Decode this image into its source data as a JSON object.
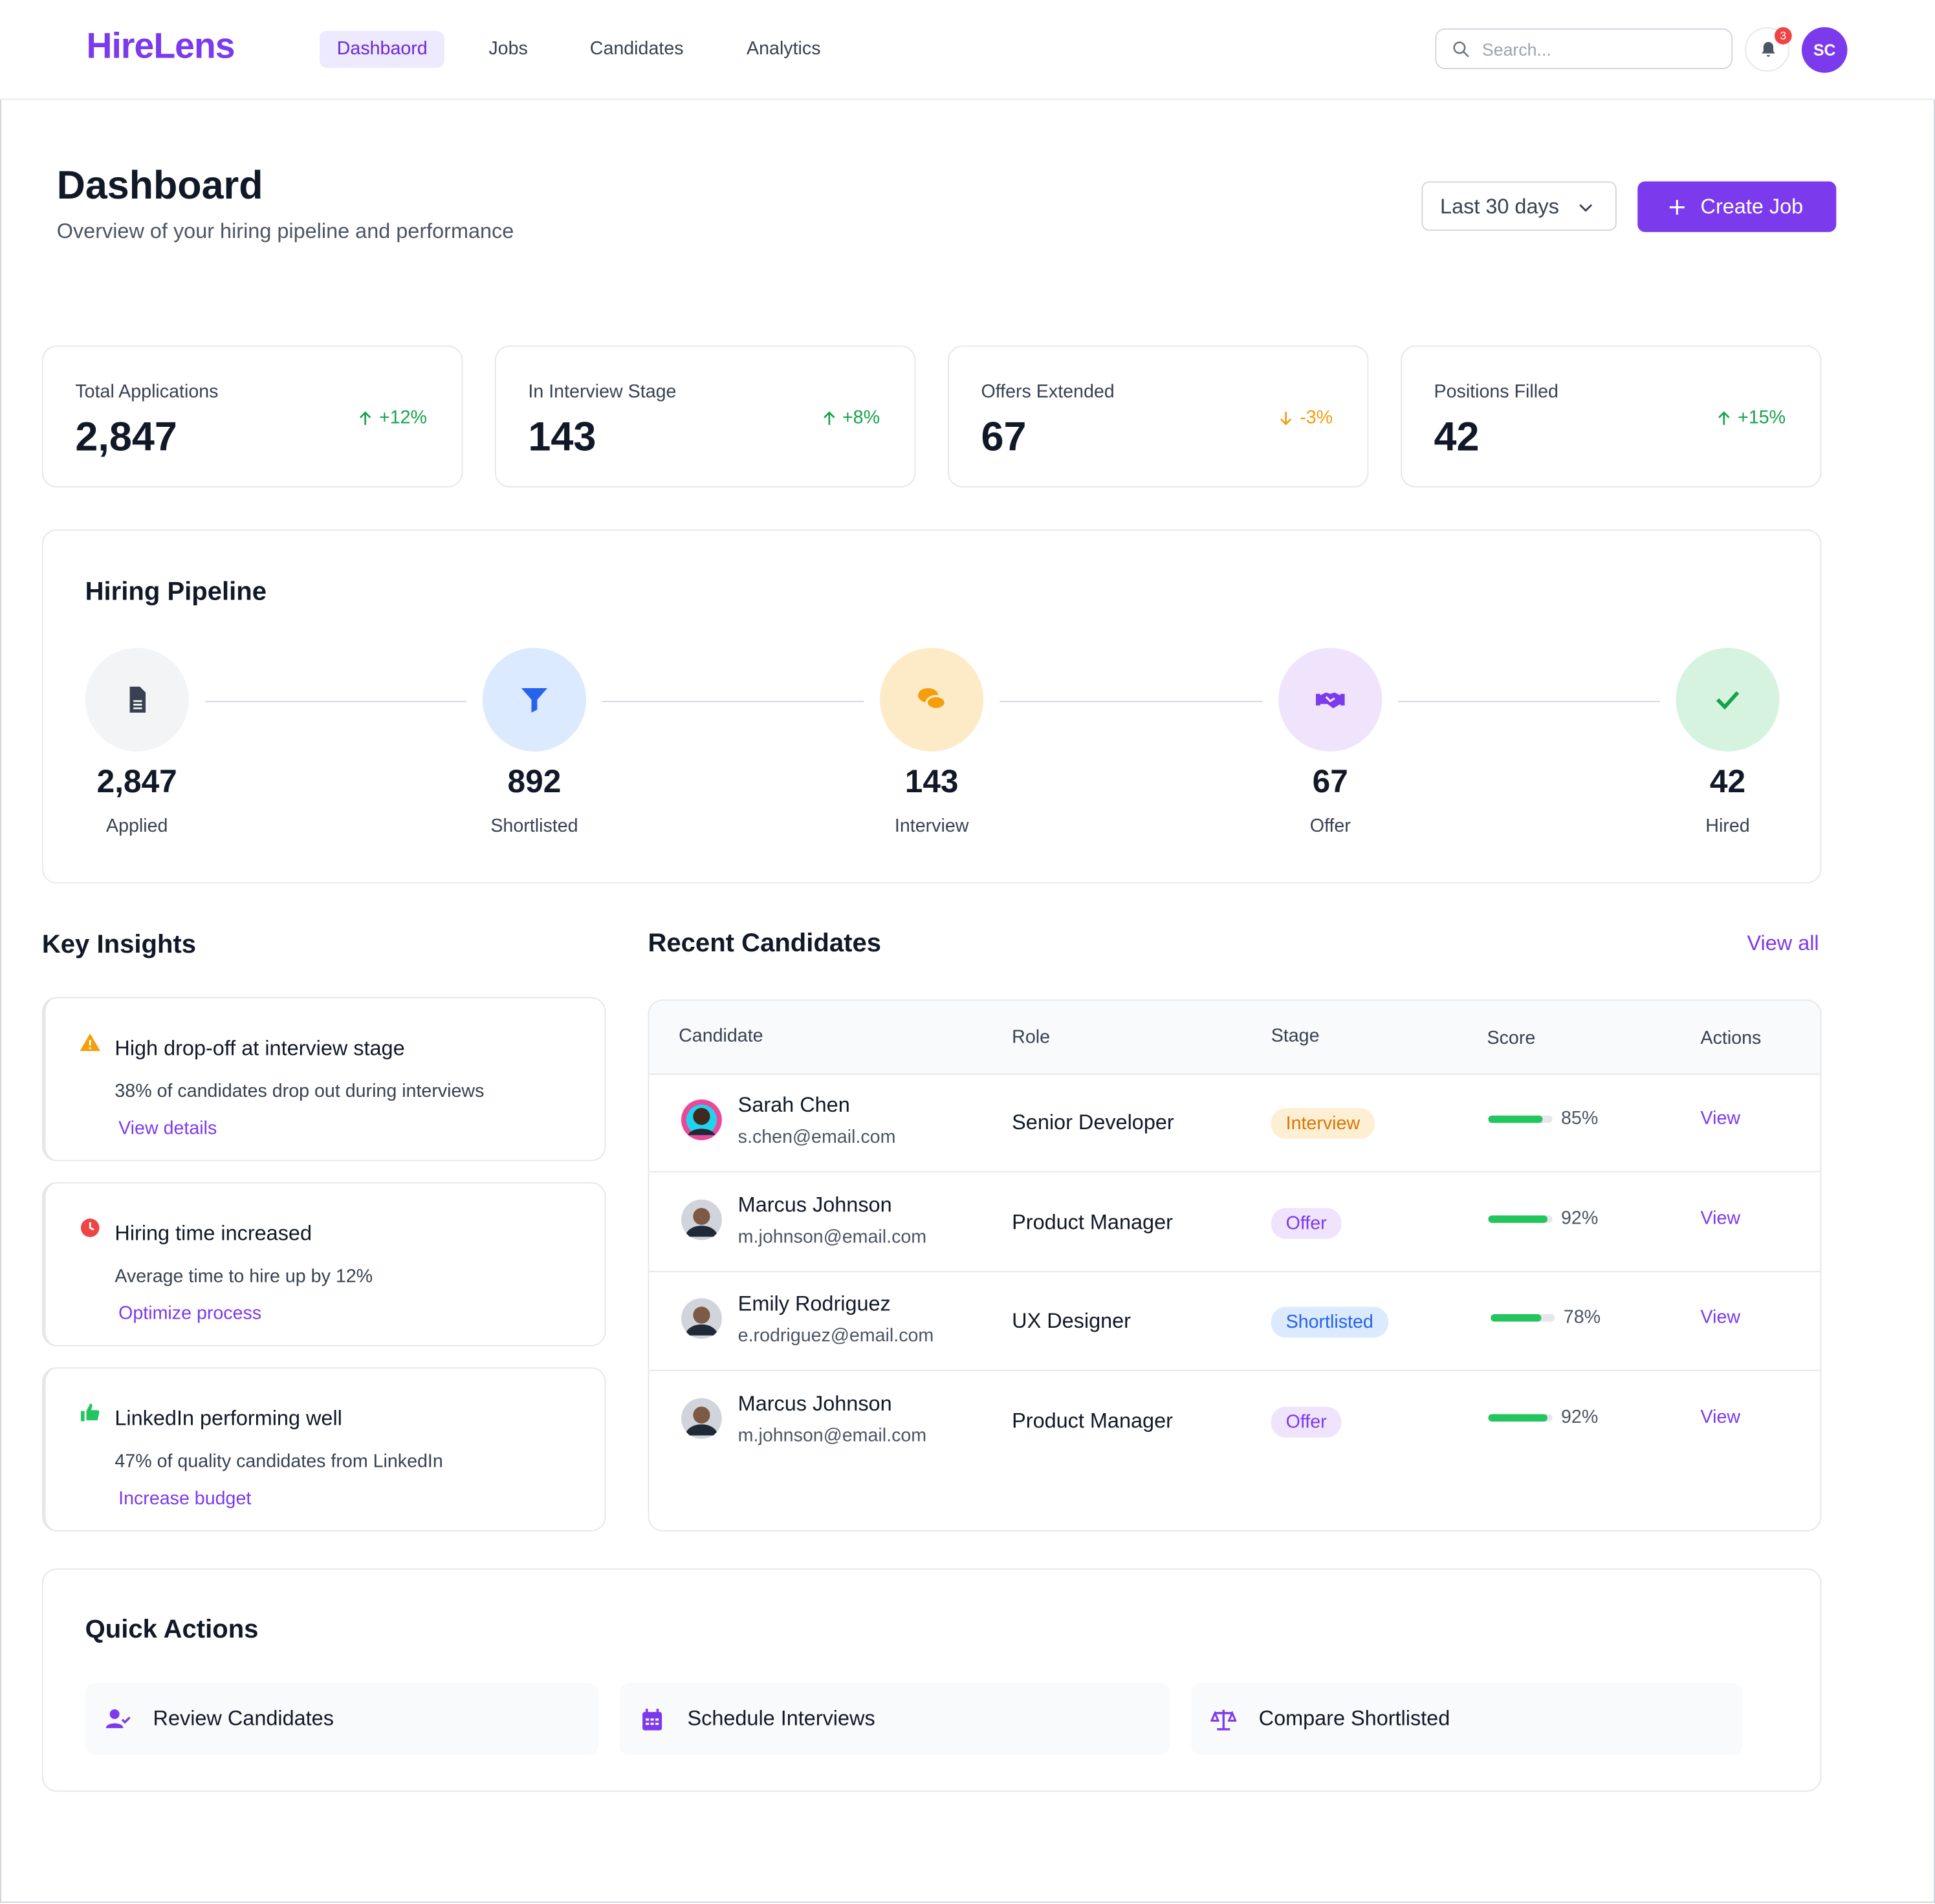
{
  "nav": {
    "brand": "HireLens",
    "links": [
      "Dashbaord",
      "Jobs",
      "Candidates",
      "Analytics"
    ],
    "search_placeholder": "Search...",
    "notifications": "3",
    "avatar": "SC"
  },
  "header": {
    "title": "Dashboard",
    "subtitle": "Overview of your hiring pipeline and performance",
    "range": "Last 30 days",
    "button": "Create Job"
  },
  "stats": [
    {
      "label": "Total Applications",
      "value": "2,847",
      "change": "+12%"
    },
    {
      "label": "In Interview Stage",
      "value": "143",
      "change": "+8%"
    },
    {
      "label": "Offers Extended",
      "value": "67",
      "change": "-3%"
    },
    {
      "label": "Positions Filled",
      "value": "42",
      "change": "+15%"
    }
  ],
  "pipeline": {
    "title": "Hiring Pipeline",
    "stages": [
      {
        "value": "2,847",
        "label": "Applied"
      },
      {
        "value": "892",
        "label": "Shortlisted"
      },
      {
        "value": "143",
        "label": "Interview"
      },
      {
        "value": "67",
        "label": "Offer"
      },
      {
        "value": "42",
        "label": "Hired"
      }
    ]
  },
  "insights": {
    "title": "Key Insights",
    "items": [
      {
        "title": "High drop-off at interview stage",
        "text": "38% of candidates drop out during interviews",
        "link": "View details"
      },
      {
        "title": "Hiring time increased",
        "text": "Average time to hire up by 12%",
        "link": "Optimize process"
      },
      {
        "title": "LinkedIn performing well",
        "text": "47% of quality candidates from LinkedIn",
        "link": "Increase budget"
      }
    ]
  },
  "candidates": {
    "title": "Recent Candidates",
    "view_all": "View all",
    "columns": [
      "Candidate",
      "Role",
      "Stage",
      "Score",
      "Actions"
    ],
    "rows": [
      {
        "name": "Sarah Chen",
        "email": "s.chen@email.com",
        "role": "Senior Developer",
        "stage": "Interview",
        "score": {
          "value": 85,
          "label": "85%"
        },
        "action": "View"
      },
      {
        "name": "Marcus Johnson",
        "email": "m.johnson@email.com",
        "role": "Product Manager",
        "stage": "Offer",
        "score": {
          "value": 92,
          "label": "92%"
        },
        "action": "View"
      },
      {
        "name": "Emily Rodriguez",
        "email": "e.rodriguez@email.com",
        "role": "UX Designer",
        "stage": "Shortlisted",
        "score": {
          "value": 78,
          "label": "78%"
        },
        "action": "View"
      },
      {
        "name": "Marcus Johnson",
        "email": "m.johnson@email.com",
        "role": "Product Manager",
        "stage": "Offer",
        "score": {
          "value": 92,
          "label": "92%"
        },
        "action": "View"
      }
    ]
  },
  "quick_actions": {
    "title": "Quick Actions",
    "items": [
      "Review Candidates",
      "Schedule Interviews",
      "Compare Shortlisted"
    ]
  }
}
